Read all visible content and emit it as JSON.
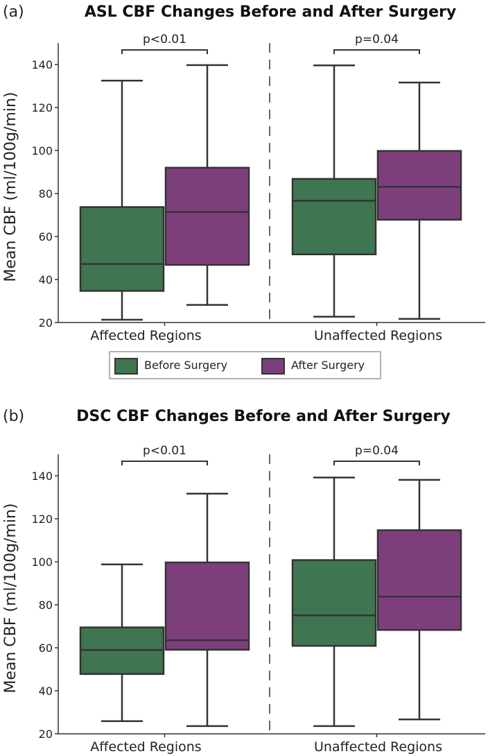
{
  "colors": {
    "before": "#3f7550",
    "after": "#7d3f7c",
    "edge": "#333333"
  },
  "legend": {
    "before": "Before Surgery",
    "after": "After Surgery",
    "placement": "between-panels"
  },
  "chart_data": [
    {
      "type": "box",
      "panel_label": "(a)",
      "title": "ASL CBF Changes Before and After Surgery",
      "ylabel": "Mean CBF (ml/100g/min)",
      "ylim": [
        20,
        150
      ],
      "yticks": [
        20,
        40,
        60,
        80,
        100,
        120,
        140
      ],
      "categories": [
        "Affected Regions",
        "Unaffected Regions"
      ],
      "annotations": [
        "p<0.01",
        "p=0.04"
      ],
      "series": [
        {
          "name": "Before Surgery",
          "boxes": [
            {
              "min": 21.3,
              "q1": 34.7,
              "median": 47.2,
              "q3": 73.7,
              "max": 132.5
            },
            {
              "min": 22.7,
              "q1": 51.7,
              "median": 76.6,
              "q3": 86.8,
              "max": 139.6
            }
          ]
        },
        {
          "name": "After Surgery",
          "boxes": [
            {
              "min": 28.2,
              "q1": 46.8,
              "median": 71.4,
              "q3": 92.0,
              "max": 139.7
            },
            {
              "min": 21.7,
              "q1": 67.8,
              "median": 83.1,
              "q3": 99.8,
              "max": 131.6
            }
          ]
        }
      ]
    },
    {
      "type": "box",
      "panel_label": "(b)",
      "title": "DSC CBF Changes Before and After Surgery",
      "ylabel": "Mean CBF (ml/100g/min)",
      "ylim": [
        20,
        150
      ],
      "yticks": [
        20,
        40,
        60,
        80,
        100,
        120,
        140
      ],
      "categories": [
        "Affected Regions",
        "Unaffected Regions"
      ],
      "annotations": [
        "p<0.01",
        "p=0.04"
      ],
      "series": [
        {
          "name": "Before Surgery",
          "boxes": [
            {
              "min": 25.9,
              "q1": 47.8,
              "median": 59.0,
              "q3": 69.5,
              "max": 98.8
            },
            {
              "min": 23.6,
              "q1": 60.9,
              "median": 75.1,
              "q3": 100.8,
              "max": 139.2
            }
          ]
        },
        {
          "name": "After Surgery",
          "boxes": [
            {
              "min": 23.6,
              "q1": 59.1,
              "median": 63.5,
              "q3": 99.7,
              "max": 131.7
            },
            {
              "min": 26.7,
              "q1": 68.3,
              "median": 83.8,
              "q3": 114.7,
              "max": 138.1
            }
          ]
        }
      ]
    }
  ]
}
